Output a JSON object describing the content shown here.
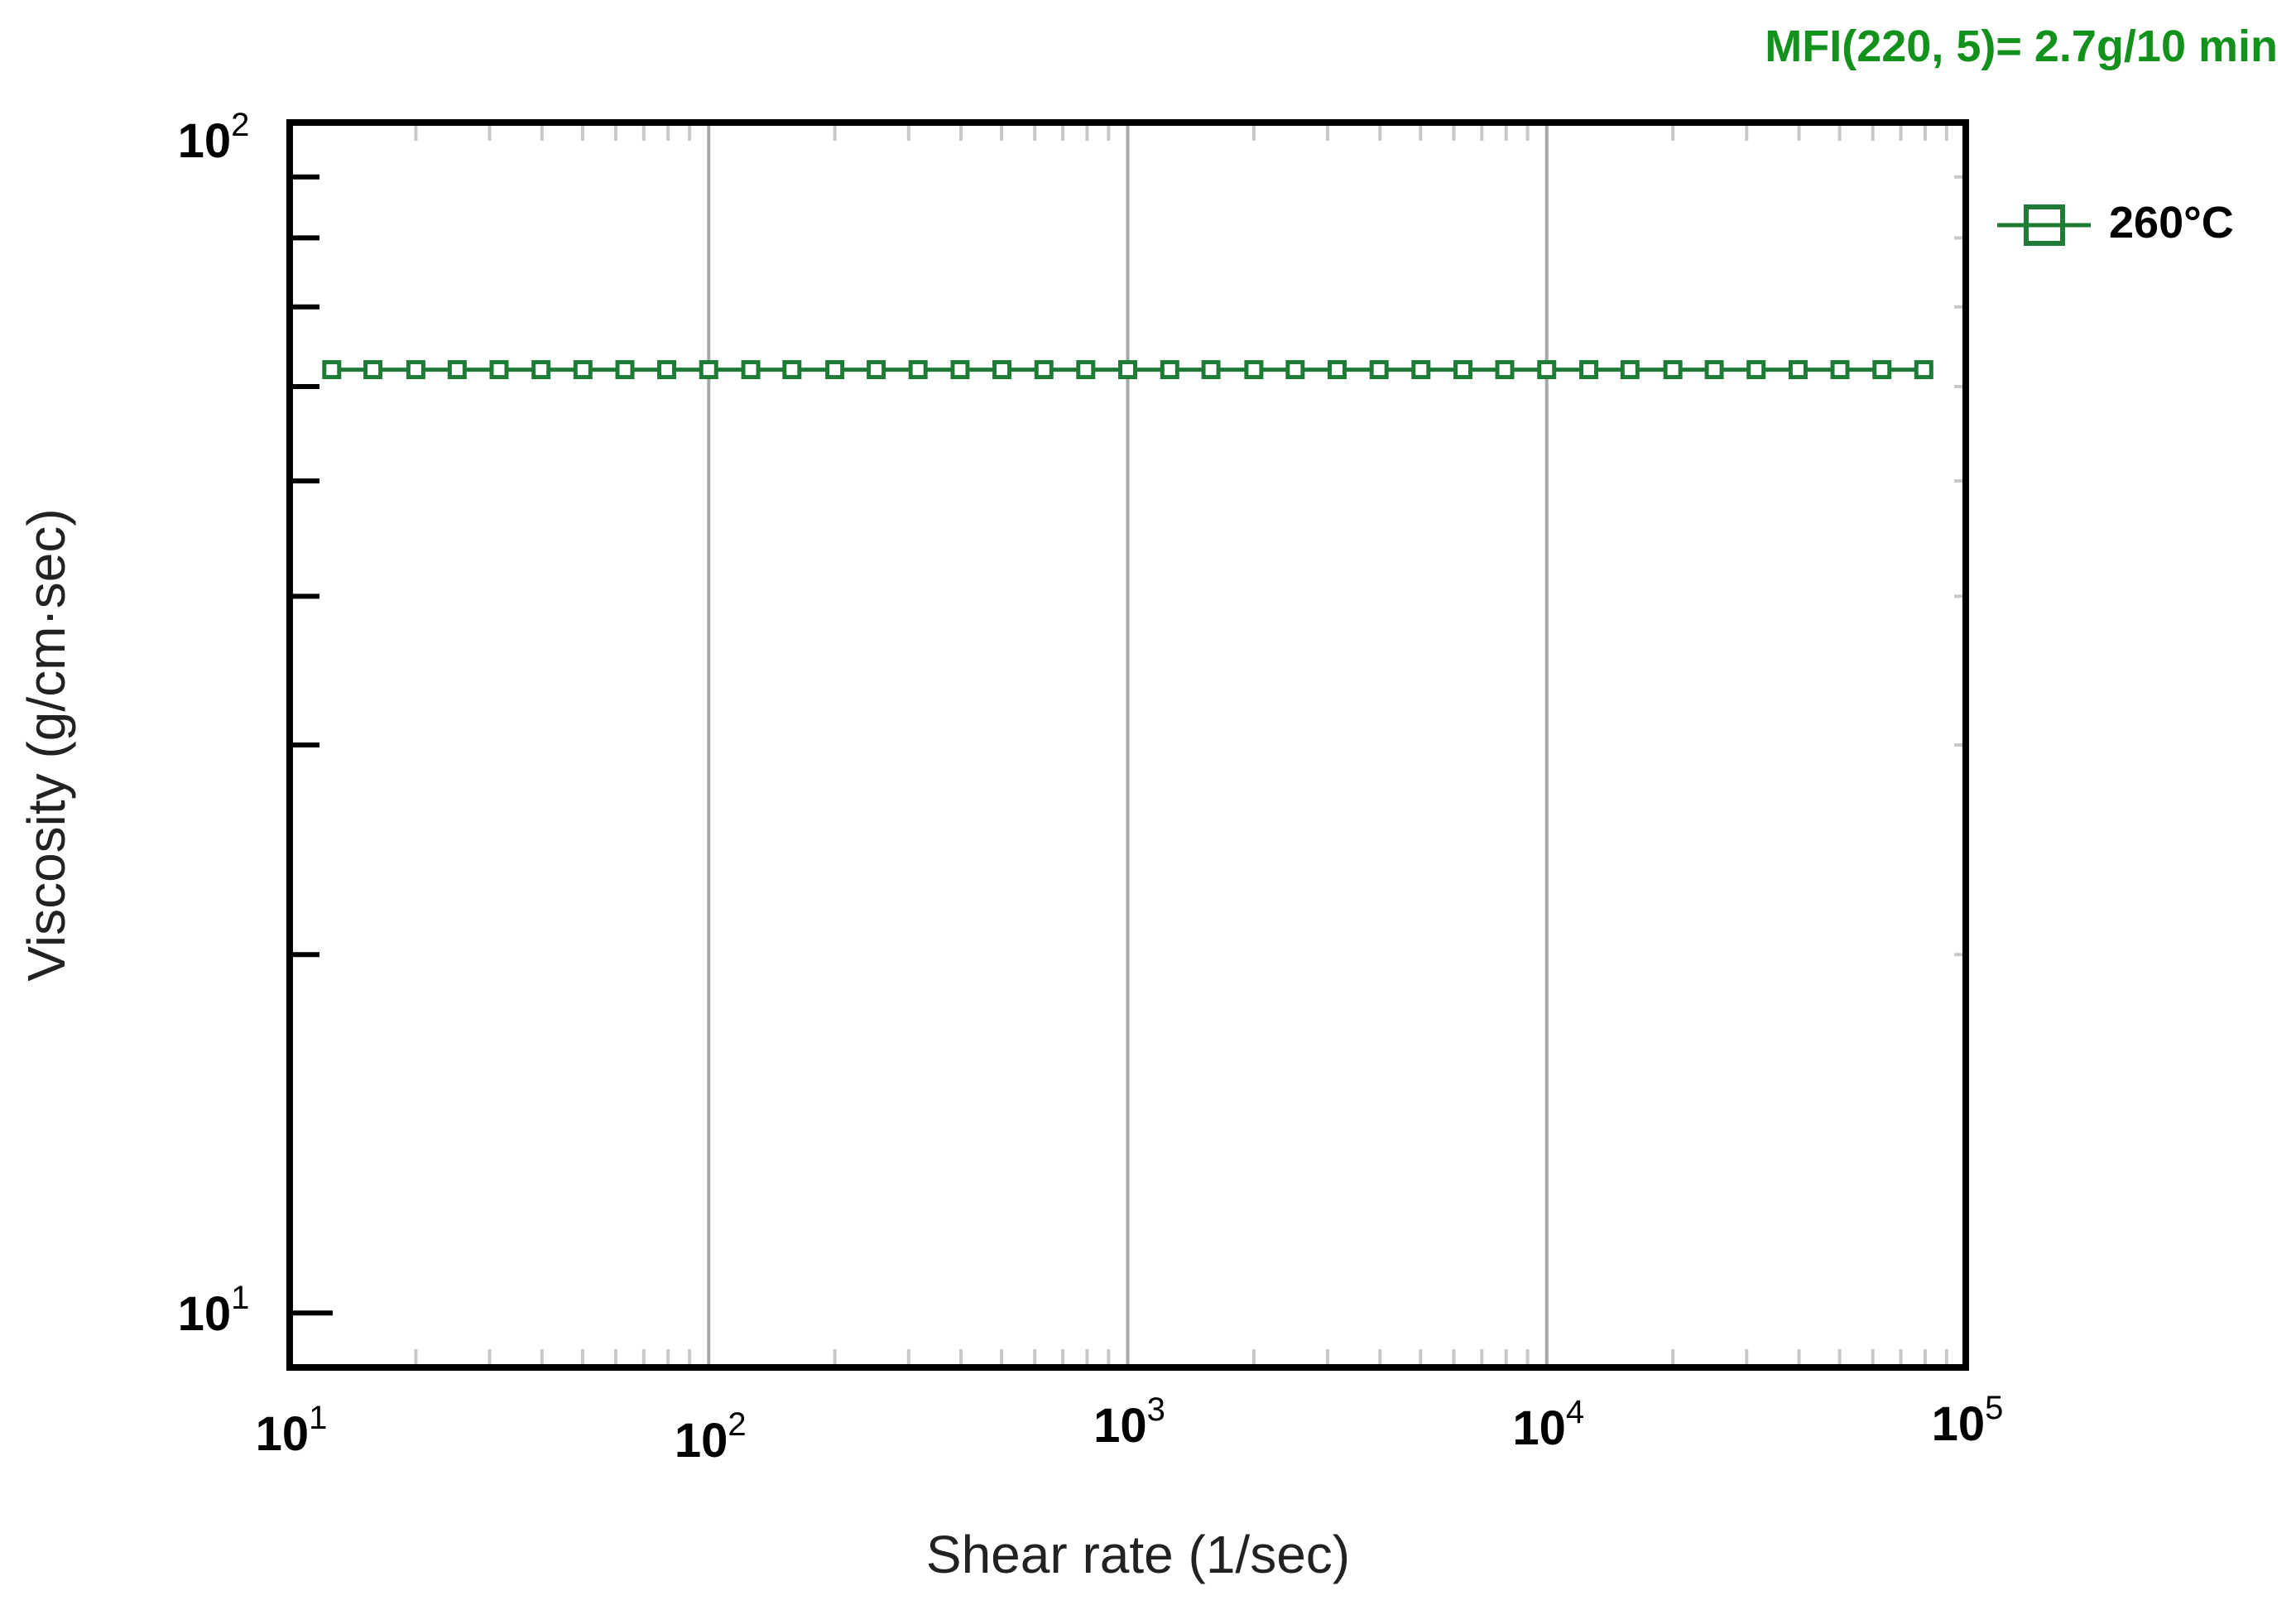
{
  "chart_data": {
    "type": "line",
    "annotation": "MFI(220, 5)= 2.7g/10 min",
    "xlabel": "Shear rate (1/sec)",
    "ylabel": "Viscosity (g/cm·sec)",
    "x_scale": "log",
    "y_scale": "log",
    "xlim": [
      10,
      100000
    ],
    "ylim": [
      9,
      100
    ],
    "x_ticks": [
      {
        "base": "10",
        "exp": "1",
        "value": 10
      },
      {
        "base": "10",
        "exp": "2",
        "value": 100
      },
      {
        "base": "10",
        "exp": "3",
        "value": 1000
      },
      {
        "base": "10",
        "exp": "4",
        "value": 10000
      },
      {
        "base": "10",
        "exp": "5",
        "value": 100000
      }
    ],
    "y_ticks": [
      {
        "base": "10",
        "exp": "2",
        "value": 100
      },
      {
        "base": "10",
        "exp": "1",
        "value": 10
      }
    ],
    "grid": "vertical at decades",
    "legend_position": "right",
    "series": [
      {
        "name": "260°C",
        "color": "#1e7b35",
        "marker": "square-open",
        "x": [
          12.6,
          15.8,
          20,
          25.1,
          31.6,
          39.8,
          50.1,
          63.1,
          79.4,
          100,
          126,
          158,
          200,
          251,
          316,
          398,
          501,
          631,
          794,
          1000,
          1260,
          1580,
          2000,
          2510,
          3160,
          3980,
          5010,
          6310,
          7940,
          10000,
          12600,
          15800,
          20000,
          25100,
          31600,
          39800,
          50100,
          63100,
          79400
        ],
        "y": [
          62,
          62,
          62,
          62,
          62,
          62,
          62,
          62,
          62,
          62,
          62,
          62,
          62,
          62,
          62,
          62,
          62,
          62,
          62,
          62,
          62,
          62,
          62,
          62,
          62,
          62,
          62,
          62,
          62,
          62,
          62,
          62,
          62,
          62,
          62,
          62,
          62,
          62,
          62
        ]
      }
    ],
    "colors": {
      "annotation": "#12921c",
      "axis": "#000000",
      "grid": "#a8a8a8",
      "minor_tick": "#c8c8c8"
    }
  }
}
